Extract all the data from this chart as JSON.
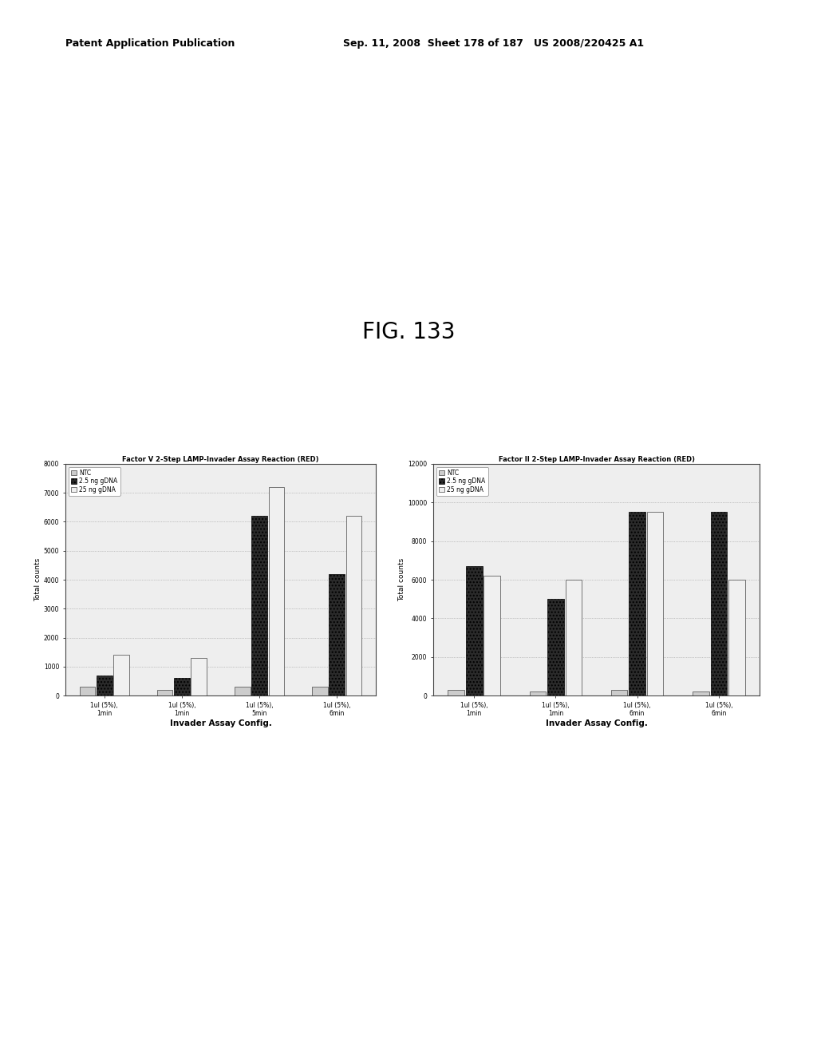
{
  "fig_title": "FIG. 133",
  "chart1": {
    "title": "Factor V 2-Step LAMP-Invader Assay Reaction (RED)",
    "ylabel": "Total counts",
    "xlabel": "Invader Assay Config.",
    "ylim": [
      0,
      8000
    ],
    "yticks": [
      0,
      1000,
      2000,
      3000,
      4000,
      5000,
      6000,
      7000,
      8000
    ],
    "categories": [
      "1ul (5%),\n1min",
      "1ul (5%),\n1min",
      "1ul (5%),\n5min",
      "1ul (5%),\n6min"
    ],
    "legend_labels": [
      "NTC",
      "2.5 ng gDNA",
      "25 ng gDNA"
    ],
    "data": {
      "NTC": [
        300,
        200,
        300,
        300
      ],
      "mid": [
        700,
        600,
        6200,
        4200
      ],
      "high": [
        1400,
        1300,
        7200,
        6200
      ]
    },
    "bar_colors": [
      "#cccccc",
      "#2a2a2a",
      "#f0f0f0"
    ],
    "bar_edgecolors": [
      "#444444",
      "#000000",
      "#444444"
    ]
  },
  "chart2": {
    "title": "Factor II 2-Step LAMP-Invader Assay Reaction (RED)",
    "ylabel": "Total counts",
    "xlabel": "Invader Assay Config.",
    "ylim": [
      0,
      12000
    ],
    "yticks": [
      0,
      2000,
      4000,
      6000,
      8000,
      10000,
      12000
    ],
    "categories": [
      "1ul (5%),\n1min",
      "1ul (5%),\n1min",
      "1ul (5%),\n6min",
      "1ul (5%),\n6min"
    ],
    "legend_labels": [
      "NTC",
      "2.5 ng gDNA",
      "25 ng gDNA"
    ],
    "data": {
      "NTC": [
        300,
        200,
        300,
        200
      ],
      "mid": [
        6700,
        5000,
        9500,
        9500
      ],
      "high": [
        6200,
        6000,
        9500,
        6000
      ]
    },
    "bar_colors": [
      "#cccccc",
      "#2a2a2a",
      "#f0f0f0"
    ],
    "bar_edgecolors": [
      "#444444",
      "#000000",
      "#444444"
    ]
  },
  "background_color": "#ffffff",
  "chart_bg": "#eeeeee",
  "grid_color": "#999999",
  "border_color": "#444444",
  "header_left": "Patent Application Publication",
  "header_right": "Sep. 11, 2008  Sheet 178 of 187   US 2008/220425 A1"
}
